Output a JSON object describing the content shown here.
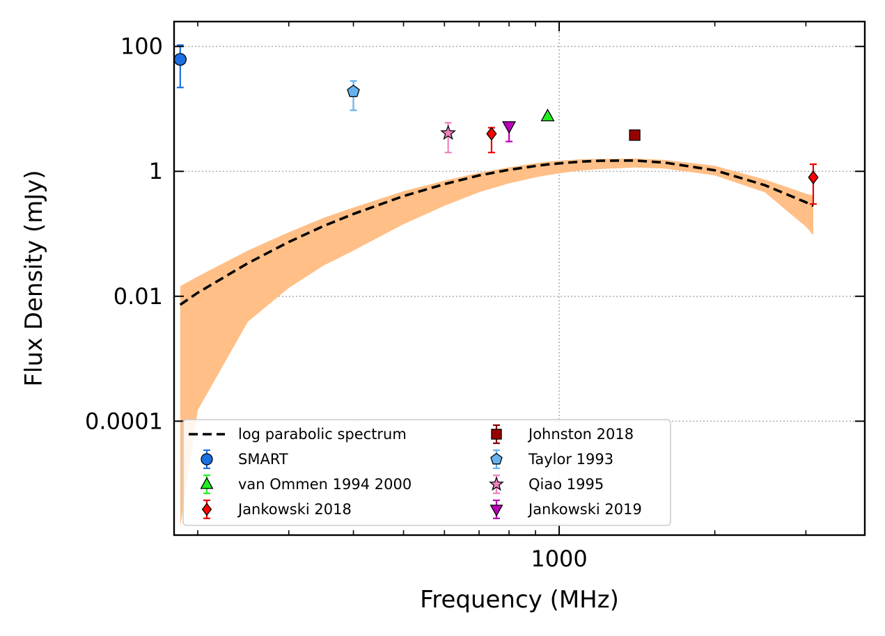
{
  "chart_data": {
    "type": "scatter",
    "xlabel": "Frequency (MHz)",
    "ylabel": "Flux Density (mJy)",
    "xscale": "log",
    "yscale": "log",
    "xlim": [
      180,
      3900
    ],
    "ylim": [
      1.5e-06,
      250
    ],
    "grid": true,
    "legend_position": "lower-left",
    "x_ticks": [
      {
        "value": 1000,
        "label": "1000"
      }
    ],
    "y_ticks": [
      {
        "value": 100,
        "label": "100"
      },
      {
        "value": 1,
        "label": "1"
      },
      {
        "value": 0.01,
        "label": "0.01"
      },
      {
        "value": 0.0001,
        "label": "0.0001"
      }
    ],
    "fit": {
      "name": "log parabolic spectrum",
      "x": [
        185,
        200,
        250,
        300,
        350,
        400,
        500,
        600,
        700,
        800,
        900,
        950,
        1000,
        1100,
        1200,
        1400,
        1600,
        2000,
        2500,
        3000,
        3100
      ],
      "y": [
        0.0073,
        0.0114,
        0.0338,
        0.0741,
        0.133,
        0.208,
        0.402,
        0.625,
        0.86,
        1.06,
        1.22,
        1.29,
        1.34,
        1.43,
        1.48,
        1.49,
        1.38,
        1.04,
        0.6,
        0.32,
        0.28
      ],
      "upper": [
        0.0145,
        0.0207,
        0.054,
        0.106,
        0.18,
        0.263,
        0.482,
        0.71,
        0.95,
        1.16,
        1.35,
        1.43,
        1.48,
        1.56,
        1.58,
        1.6,
        1.53,
        1.23,
        0.74,
        0.44,
        0.41
      ],
      "lower": [
        2e-06,
        0.00015,
        0.0039,
        0.0136,
        0.0309,
        0.0537,
        0.142,
        0.281,
        0.463,
        0.643,
        0.8,
        0.87,
        0.93,
        1.03,
        1.09,
        1.15,
        1.11,
        0.86,
        0.46,
        0.13,
        0.095
      ]
    },
    "series": [
      {
        "name": "SMART",
        "marker": "circle",
        "color": "#1a70e0",
        "errcolor": "#1a70e0",
        "points": [
          {
            "x": 185,
            "y": 62,
            "ylo": 22,
            "yhi": 105
          }
        ]
      },
      {
        "name": "van Ommen 1994 2000",
        "marker": "triangle-up",
        "color": "#22ee22",
        "errcolor": "#22ee22",
        "points": [
          {
            "x": 950,
            "y": 7.6,
            "ylo": 7.2,
            "yhi": 8.0
          }
        ]
      },
      {
        "name": "Jankowski 2018",
        "marker": "diamond",
        "color": "#ff0000",
        "errcolor": "#ee0000",
        "points": [
          {
            "x": 740,
            "y": 4.0,
            "ylo": 2.0,
            "yhi": 5.0
          },
          {
            "x": 3100,
            "y": 0.8,
            "ylo": 0.3,
            "yhi": 1.3
          }
        ]
      },
      {
        "name": "Johnston 2018",
        "marker": "square",
        "color": "#990000",
        "errcolor": "#880000",
        "points": [
          {
            "x": 1400,
            "y": 3.8,
            "ylo": 3.2,
            "yhi": 4.4
          }
        ]
      },
      {
        "name": "Taylor 1993",
        "marker": "pentagon",
        "color": "#66b0f0",
        "errcolor": "#66b0f0",
        "points": [
          {
            "x": 400,
            "y": 19,
            "ylo": 9.5,
            "yhi": 28
          }
        ]
      },
      {
        "name": "Qiao 1995",
        "marker": "star",
        "color": "#f080c0",
        "errcolor": "#f080c0",
        "points": [
          {
            "x": 610,
            "y": 4.1,
            "ylo": 2.0,
            "yhi": 6.0
          }
        ]
      },
      {
        "name": "Jankowski 2019",
        "marker": "triangle-down",
        "color": "#bb00bb",
        "errcolor": "#bb00bb",
        "points": [
          {
            "x": 800,
            "y": 5.3,
            "ylo": 3.0,
            "yhi": 6.0
          }
        ]
      }
    ],
    "colors": {
      "band": "#ffbf86",
      "fit_line": "#000000",
      "grid": "#b0b0b0"
    }
  }
}
